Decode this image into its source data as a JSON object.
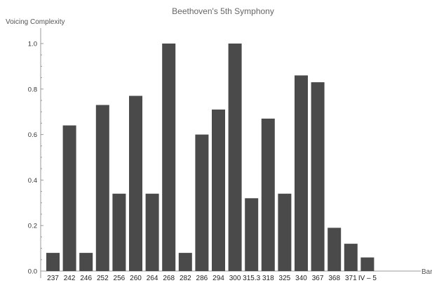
{
  "chart_data": {
    "type": "bar",
    "title": "Beethoven's 5th Symphony",
    "xlabel": "Bar",
    "ylabel": "Voicing Complexity",
    "ylim": [
      0,
      1.0
    ],
    "yticks": [
      "0.0",
      "0.2",
      "0.4",
      "0.6",
      "0.8",
      "1.0"
    ],
    "categories": [
      "237",
      "242",
      "246",
      "252",
      "256",
      "260",
      "264",
      "268",
      "282",
      "286",
      "294",
      "300",
      "315.3",
      "318",
      "325",
      "340",
      "367",
      "368",
      "371",
      "IV – 5"
    ],
    "values": [
      0.08,
      0.64,
      0.08,
      0.73,
      0.34,
      0.77,
      0.34,
      1.0,
      0.08,
      0.6,
      0.71,
      1.0,
      0.32,
      0.67,
      0.34,
      0.86,
      0.83,
      0.19,
      0.12,
      0.06
    ],
    "bar_color": "#4a4a4a",
    "grid": false,
    "legend": "none"
  }
}
